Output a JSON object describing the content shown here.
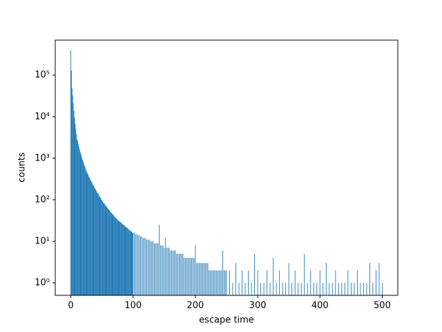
{
  "chart_data": {
    "type": "bar",
    "xlabel": "escape time",
    "ylabel": "counts",
    "color": "#1f77b4",
    "yscale": "log",
    "xlim": [
      -25,
      525
    ],
    "xticks": [
      0,
      100,
      200,
      300,
      400,
      500
    ],
    "ylim": [
      0.5,
      700000
    ],
    "yticks": [
      {
        "value": 1,
        "label": "10⁰"
      },
      {
        "value": 10,
        "label": "10¹"
      },
      {
        "value": 100,
        "label": "10²"
      },
      {
        "value": 1000,
        "label": "10³"
      },
      {
        "value": 10000,
        "label": "10⁴"
      },
      {
        "value": 100000,
        "label": "10⁵"
      }
    ],
    "x": [
      0,
      1,
      2,
      3,
      4,
      5,
      6,
      7,
      8,
      9,
      10,
      11,
      12,
      13,
      14,
      15,
      16,
      17,
      18,
      19,
      20,
      21,
      22,
      23,
      24,
      25,
      26,
      27,
      28,
      29,
      30,
      31,
      32,
      33,
      34,
      35,
      36,
      37,
      38,
      39,
      40,
      41,
      42,
      43,
      44,
      45,
      46,
      47,
      48,
      49,
      50,
      51,
      52,
      53,
      54,
      55,
      56,
      57,
      58,
      59,
      60,
      61,
      62,
      63,
      64,
      65,
      66,
      67,
      68,
      69,
      70,
      71,
      72,
      73,
      74,
      75,
      76,
      77,
      78,
      79,
      80,
      81,
      82,
      83,
      84,
      85,
      86,
      87,
      88,
      89,
      90,
      91,
      92,
      93,
      94,
      95,
      96,
      97,
      98,
      99,
      100,
      102,
      104,
      106,
      108,
      110,
      112,
      114,
      116,
      118,
      120,
      122,
      124,
      126,
      128,
      130,
      132,
      134,
      136,
      138,
      140,
      142,
      144,
      146,
      148,
      150,
      152,
      154,
      156,
      158,
      160,
      162,
      164,
      166,
      168,
      170,
      172,
      174,
      176,
      178,
      180,
      182,
      184,
      186,
      188,
      190,
      192,
      194,
      196,
      198,
      200,
      202,
      204,
      206,
      208,
      210,
      212,
      214,
      216,
      218,
      220,
      222,
      224,
      226,
      228,
      230,
      232,
      234,
      236,
      238,
      240,
      242,
      244,
      246,
      248,
      250,
      255,
      260,
      265,
      270,
      275,
      280,
      285,
      290,
      295,
      300,
      305,
      310,
      315,
      320,
      325,
      330,
      335,
      340,
      345,
      350,
      355,
      360,
      365,
      370,
      375,
      380,
      385,
      390,
      395,
      400,
      405,
      410,
      415,
      420,
      425,
      430,
      435,
      440,
      445,
      450,
      455,
      460,
      465,
      470,
      475,
      480,
      485,
      490,
      495,
      500
    ],
    "values": [
      400000,
      130000,
      48000,
      33000,
      21000,
      14000,
      9500,
      6800,
      5000,
      3800,
      2900,
      2600,
      2200,
      1900,
      1650,
      1450,
      1300,
      1150,
      1000,
      920,
      820,
      740,
      660,
      610,
      540,
      500,
      455,
      430,
      395,
      360,
      340,
      320,
      290,
      275,
      255,
      240,
      225,
      210,
      200,
      185,
      175,
      165,
      150,
      145,
      140,
      128,
      120,
      115,
      110,
      100,
      96,
      90,
      88,
      82,
      80,
      76,
      72,
      70,
      66,
      64,
      60,
      58,
      56,
      52,
      50,
      49,
      47,
      45,
      43,
      42,
      40,
      38,
      37,
      36,
      34,
      33,
      32,
      31,
      30,
      29,
      29,
      28,
      27,
      26,
      25,
      25,
      24,
      23,
      22,
      22,
      21,
      21,
      20,
      19,
      19,
      18,
      18,
      17,
      17,
      16,
      16,
      16,
      15,
      15,
      14,
      14,
      13,
      13,
      12,
      12,
      12,
      11,
      11,
      11,
      10,
      10,
      10,
      9,
      9,
      9,
      9,
      25,
      8,
      8,
      8,
      7,
      12,
      7,
      7,
      7,
      6,
      6,
      6,
      6,
      6,
      5,
      5,
      5,
      5,
      5,
      5,
      4,
      4,
      4,
      4,
      4,
      4,
      4,
      4,
      4,
      8,
      3,
      3,
      3,
      3,
      3,
      3,
      3,
      3,
      3,
      3,
      2,
      2,
      2,
      2,
      2,
      2,
      2,
      2,
      2,
      2,
      2,
      6,
      2,
      2,
      2,
      2,
      1,
      3,
      1,
      2,
      1,
      2,
      1,
      5,
      2,
      1,
      1,
      2,
      1,
      4,
      1,
      2,
      1,
      1,
      3,
      1,
      2,
      1,
      1,
      5,
      1,
      2,
      1,
      1,
      2,
      1,
      3,
      1,
      1,
      2,
      1,
      1,
      1,
      2,
      1,
      1,
      2,
      1,
      1,
      1,
      3,
      1,
      2,
      3,
      1
    ]
  }
}
